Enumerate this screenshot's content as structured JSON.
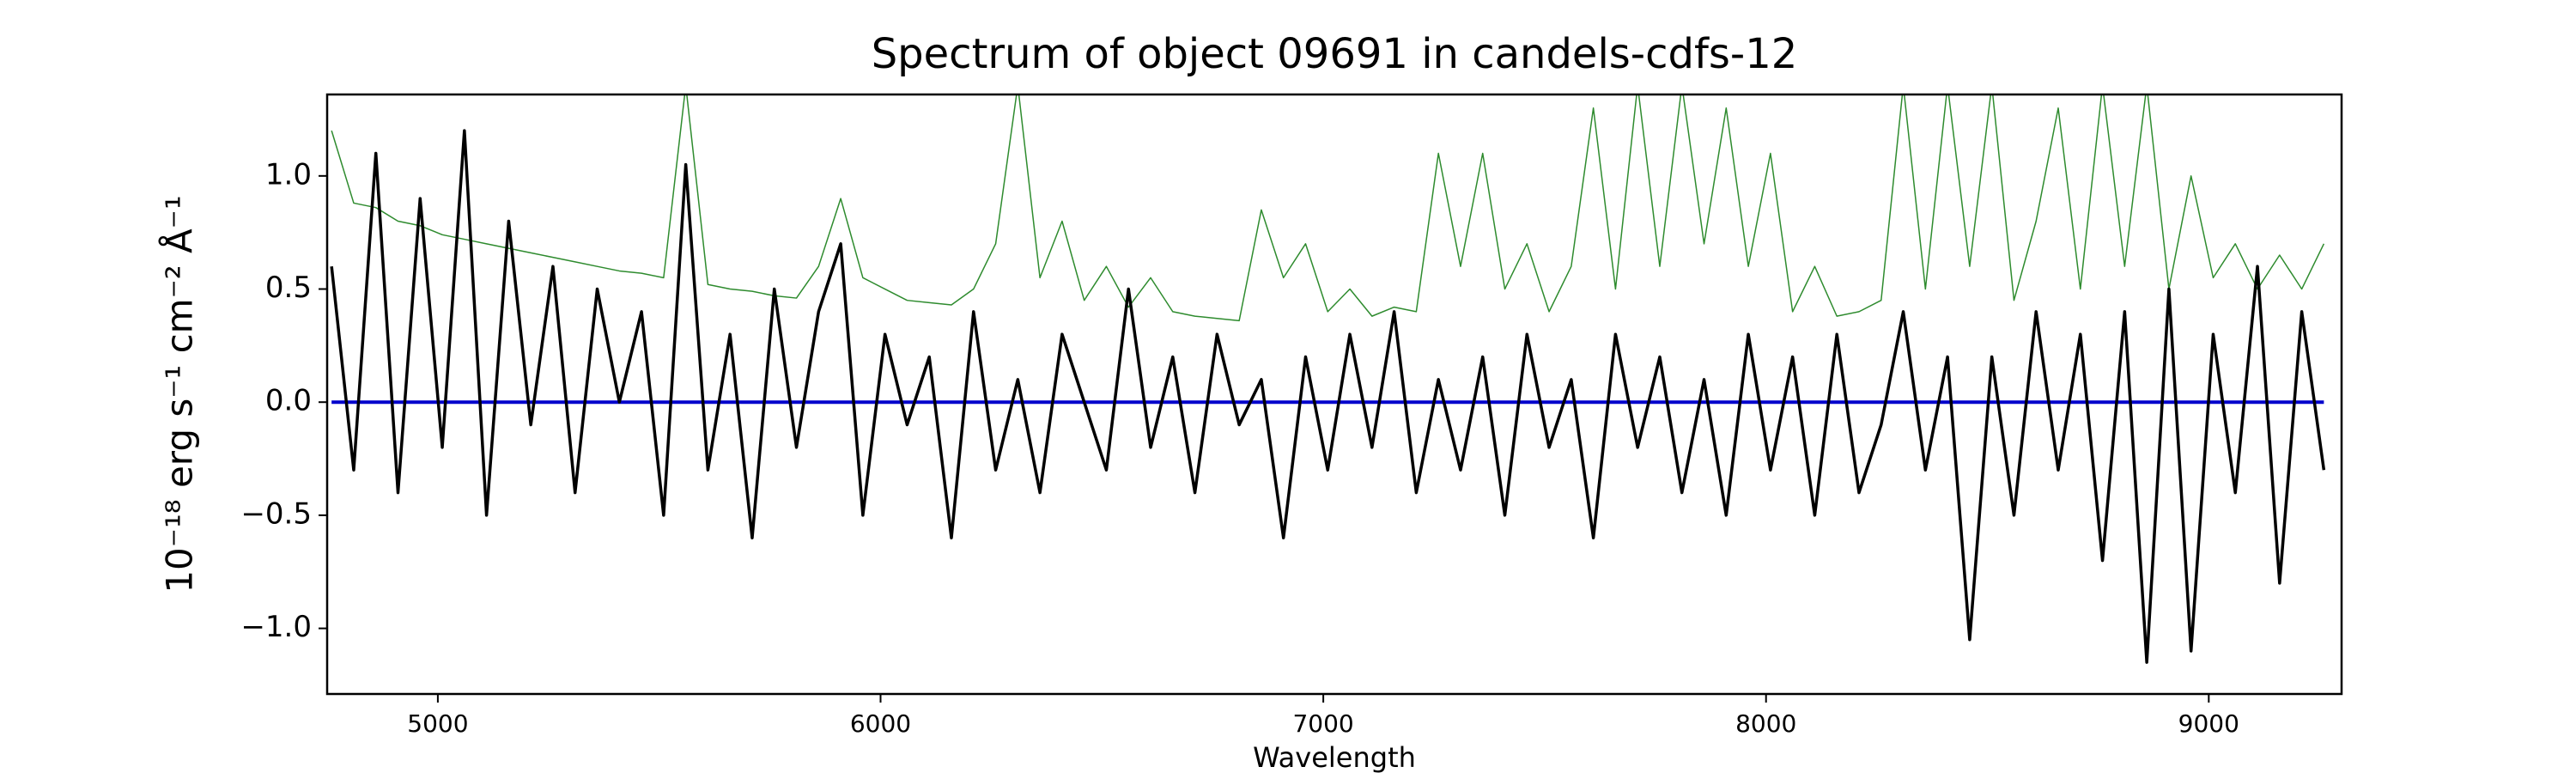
{
  "chart_data": {
    "type": "line",
    "title": "Spectrum of object 09691 in candels-cdfs-12",
    "xlabel": "Wavelength",
    "ylabel": "10⁻¹⁸ erg s⁻¹ cm⁻² Å⁻¹",
    "xlim": [
      4750,
      9300
    ],
    "ylim": [
      -1.29,
      1.36
    ],
    "xticks": [
      5000,
      6000,
      7000,
      8000,
      9000
    ],
    "yticks": [
      {
        "value": -1,
        "label": "−1.0"
      },
      {
        "value": -0.5,
        "label": "−0.5"
      },
      {
        "value": 0,
        "label": "0.0"
      },
      {
        "value": 0.5,
        "label": "0.5"
      },
      {
        "value": 1,
        "label": "1.0"
      }
    ],
    "grid": false,
    "x": [
      4760,
      4810,
      4860,
      4910,
      4960,
      5010,
      5060,
      5110,
      5160,
      5210,
      5260,
      5310,
      5360,
      5410,
      5460,
      5510,
      5560,
      5610,
      5660,
      5710,
      5760,
      5810,
      5860,
      5910,
      5960,
      6010,
      6060,
      6110,
      6160,
      6210,
      6260,
      6310,
      6360,
      6410,
      6460,
      6510,
      6560,
      6610,
      6660,
      6710,
      6760,
      6810,
      6860,
      6910,
      6960,
      7010,
      7060,
      7110,
      7160,
      7210,
      7260,
      7310,
      7360,
      7410,
      7460,
      7510,
      7560,
      7610,
      7660,
      7710,
      7760,
      7810,
      7860,
      7910,
      7960,
      8010,
      8060,
      8110,
      8160,
      8210,
      8260,
      8310,
      8360,
      8410,
      8460,
      8510,
      8560,
      8610,
      8660,
      8710,
      8760,
      8810,
      8860,
      8910,
      8960,
      9010,
      9060,
      9110,
      9160,
      9210,
      9260
    ],
    "series": [
      {
        "color": "#2e8b2e",
        "width": 1.5,
        "values": [
          1.2,
          0.88,
          0.86,
          0.8,
          0.78,
          0.74,
          0.72,
          0.7,
          0.68,
          0.66,
          0.64,
          0.62,
          0.6,
          0.58,
          0.57,
          0.55,
          1.4,
          0.52,
          0.5,
          0.49,
          0.47,
          0.46,
          0.6,
          0.9,
          0.55,
          0.5,
          0.45,
          0.44,
          0.43,
          0.5,
          0.7,
          1.4,
          0.55,
          0.8,
          0.45,
          0.6,
          0.42,
          0.55,
          0.4,
          0.38,
          0.37,
          0.36,
          0.85,
          0.55,
          0.7,
          0.4,
          0.5,
          0.38,
          0.42,
          0.4,
          1.1,
          0.6,
          1.1,
          0.5,
          0.7,
          0.4,
          0.6,
          1.3,
          0.5,
          1.4,
          0.6,
          1.4,
          0.7,
          1.3,
          0.6,
          1.1,
          0.4,
          0.6,
          0.38,
          0.4,
          0.45,
          1.4,
          0.5,
          1.4,
          0.6,
          1.4,
          0.45,
          0.8,
          1.3,
          0.5,
          1.4,
          0.6,
          1.4,
          0.5,
          1.0,
          0.55,
          0.7,
          0.5,
          0.65,
          0.5,
          0.7
        ]
      },
      {
        "color": "#0000cc",
        "width": 4,
        "values": [
          0,
          0,
          0,
          0,
          0,
          0,
          0,
          0,
          0,
          0,
          0,
          0,
          0,
          0,
          0,
          0,
          0,
          0,
          0,
          0,
          0,
          0,
          0,
          0,
          0,
          0,
          0,
          0,
          0,
          0,
          0,
          0,
          0,
          0,
          0,
          0,
          0,
          0,
          0,
          0,
          0,
          0,
          0,
          0,
          0,
          0,
          0,
          0,
          0,
          0,
          0,
          0,
          0,
          0,
          0,
          0,
          0,
          0,
          0,
          0,
          0,
          0,
          0,
          0,
          0,
          0,
          0,
          0,
          0,
          0,
          0,
          0,
          0,
          0,
          0,
          0,
          0,
          0,
          0,
          0,
          0,
          0,
          0,
          0,
          0,
          0,
          0,
          0,
          0,
          0,
          0
        ]
      },
      {
        "color": "#000000",
        "width": 3.5,
        "values": [
          0.6,
          -0.3,
          1.1,
          -0.4,
          0.9,
          -0.2,
          1.2,
          -0.5,
          0.8,
          -0.1,
          0.6,
          -0.4,
          0.5,
          0.0,
          0.4,
          -0.5,
          1.05,
          -0.3,
          0.3,
          -0.6,
          0.5,
          -0.2,
          0.4,
          0.7,
          -0.5,
          0.3,
          -0.1,
          0.2,
          -0.6,
          0.4,
          -0.3,
          0.1,
          -0.4,
          0.3,
          0.0,
          -0.3,
          0.5,
          -0.2,
          0.2,
          -0.4,
          0.3,
          -0.1,
          0.1,
          -0.6,
          0.2,
          -0.3,
          0.3,
          -0.2,
          0.4,
          -0.4,
          0.1,
          -0.3,
          0.2,
          -0.5,
          0.3,
          -0.2,
          0.1,
          -0.6,
          0.3,
          -0.2,
          0.2,
          -0.4,
          0.1,
          -0.5,
          0.3,
          -0.3,
          0.2,
          -0.5,
          0.3,
          -0.4,
          -0.1,
          0.4,
          -0.3,
          0.2,
          -1.05,
          0.2,
          -0.5,
          0.4,
          -0.3,
          0.3,
          -0.7,
          0.4,
          -1.15,
          0.5,
          -1.1,
          0.3,
          -0.4,
          0.6,
          -0.8,
          0.4,
          -0.3
        ]
      }
    ]
  }
}
